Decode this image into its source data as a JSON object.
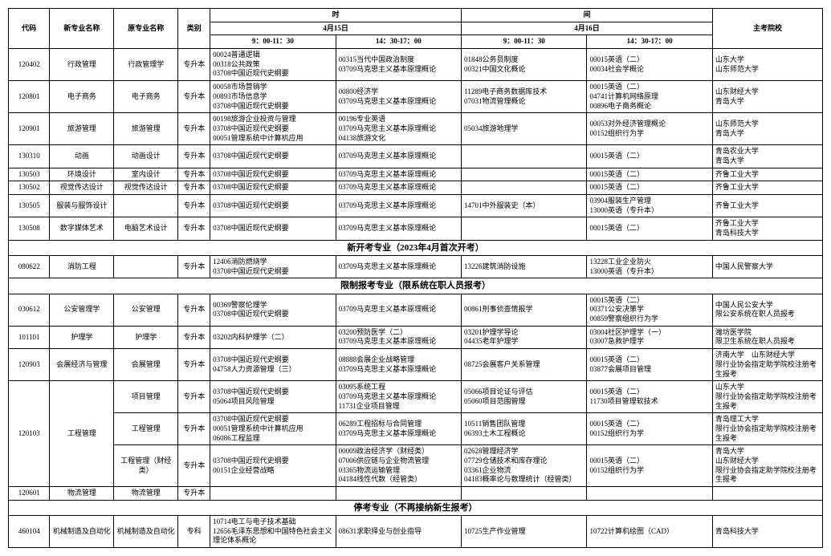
{
  "header": {
    "col_code": "代码",
    "col_new_major": "新专业名称",
    "col_old_major": "原专业名称",
    "col_type": "类别",
    "col_time": "时",
    "col_gap": "间",
    "col_date1": "4月15日",
    "col_date2": "4月16日",
    "slot1": "9：00-11：30",
    "slot2": "14：30-17：00",
    "slot3": "9：00-11：30",
    "slot4": "14：30-17：00",
    "col_school": "主考院校"
  },
  "rows": [
    {
      "code": "120402",
      "n": "行政管理",
      "o": "行政管理学",
      "t": "专升本",
      "s1": "00024普通逻辑\n00318公共政策\n03708中国近现代史纲要",
      "s2": "00315当代中国政治制度\n03709马克思主义基本原理概论",
      "s3": "01848公务员制度\n00321中国文化概论",
      "s4": "00015英语（二）\n00034社会学概论",
      "sch": "山东大学\n山东师范大学"
    },
    {
      "code": "120801",
      "n": "电子商务",
      "o": "电子商务",
      "t": "专升本",
      "s1": "00058市场营销学\n00893市场信息学\n03708中国近现代史纲要",
      "s2": "00800经济学\n03709马克思主义基本原理概论",
      "s3": "11289电子商务数据库技术\n07031物流管理概论",
      "s4": "00015英语（二）\n04741计算机网络原理\n00896电子商务概论",
      "sch": "山东财经大学\n青岛大学"
    },
    {
      "code": "120901",
      "n": "旅游管理",
      "o": "旅游管理",
      "t": "专升本",
      "s1": "00198旅游企业投资与管理\n03708中国近现代史纲要\n00051管理系统中计算机应用",
      "s2": "00196专业英语\n03709马克思主义基本原理概论\n04138旅游文化",
      "s3": "05034旅游地理学",
      "s4": "00053对外经济管理概论\n00152组织行为学",
      "sch": "山东师范大学\n青岛大学"
    },
    {
      "code": "130310",
      "n": "动画",
      "o": "动画设计",
      "t": "专升本",
      "s1": "03708中国近现代史纲要",
      "s2": "03709马克思主义基本原理概论",
      "s3": "",
      "s4": "00015英语（二）",
      "sch": "青岛农业大学\n青岛大学"
    },
    {
      "code": "130503",
      "n": "环境设计",
      "o": "室内设计",
      "t": "专升本",
      "s1": "03708中国近现代史纲要",
      "s2": "03709马克思主义基本原理概论",
      "s3": "",
      "s4": "00015英语（二）",
      "sch": "齐鲁工业大学"
    },
    {
      "code": "130502",
      "n": "视觉传达设计",
      "o": "视觉传达设计",
      "t": "专升本",
      "s1": "03708中国近现代史纲要",
      "s2": "03709马克思主义基本原理概论",
      "s3": "",
      "s4": "00015英语（二）",
      "sch": "齐鲁工业大学"
    },
    {
      "code": "130505",
      "n": "服装与服饰设计",
      "o": "",
      "t": "专升本",
      "s1": "03708中国近现代史纲要",
      "s2": "03709马克思主义基本原理概论",
      "s3": "14701中外服装史（本）",
      "s4": "03904服装生产管理\n13000英语（专升本）",
      "sch": "齐鲁工业大学"
    },
    {
      "code": "130508",
      "n": "数字媒体艺术",
      "o": "电脑艺术设计",
      "t": "专升本",
      "s1": "03708中国近现代史纲要",
      "s2": "03709马克思主义基本原理概论",
      "s3": "",
      "s4": "00015英语（二）",
      "sch": "齐鲁工业大学\n青岛科技大学"
    }
  ],
  "sec1": {
    "title": "新开考专业（2023年4月首次开考）"
  },
  "rows2": [
    {
      "code": "080622",
      "n": "消防工程",
      "o": "",
      "t": "专升本",
      "s1": "12406消防燃烧学\n03708中国近现代史纲要",
      "s2": "03709马克思主义基本原理概论",
      "s3": "13226建筑消防设施",
      "s4": "13228工业企业防火\n13000英语（专升本）",
      "sch": "中国人民警察大学"
    }
  ],
  "sec2": {
    "title": "限制报考专业（限系统在职人员报考）"
  },
  "rows3": [
    {
      "code": "030612",
      "n": "公安管理学",
      "o": "公安管理",
      "t": "专升本",
      "s1": "00369警察伦理学\n03708中国近现代史纲要",
      "s2": "03709马克思主义基本原理概论",
      "s3": "00861刑事侦查情报学",
      "s4": "00015英语（二）\n00371公安决策学\n00859警察组织行为学",
      "sch": "中国人民公安大学\n限公安系统在职人员报考"
    },
    {
      "code": "101101",
      "n": "护理学",
      "o": "护理学",
      "t": "专升本",
      "s1": "03202内科护理学（二）",
      "s2": "03200预防医学（二）\n03709马克思主义基本原理概论",
      "s3": "03201护理学导论\n04435老年护理学",
      "s4": "03004社区护理学（一）\n03007急救护理学",
      "sch": "潍坊医学院\n限卫生系统在职人员报考"
    },
    {
      "code": "120903",
      "n": "会展经济与管理",
      "o": "会展管理",
      "t": "专升本",
      "s1": "03708中国近现代史纲要\n04758人力资源管理（三）",
      "s2": "08888会展企业战略管理\n03709马克思主义基本原理概论",
      "s3": "08725会展客户关系管理",
      "s4": "00015英语（二）\n03877会展项目管理",
      "sch": "济南大学　山东财经大学\n限行业协会指定助学院校注册考生报考"
    },
    {
      "code": "120103",
      "n": "工程管理",
      "o": "项目管理",
      "t": "专升本",
      "rs": 3,
      "s1": "03708中国近现代史纲要\n05064项目风险管理",
      "s2": "03095系统工程\n03709马克思主义基本原理概论\n11731企业项目管理",
      "s3": "05066项目论证与评估\n05060项目范围管理",
      "s4": "00015英语（二）\n11730项目管理软技术",
      "sch": "山东大学\n限行业协会指定助学院校注册考生报考"
    },
    {
      "code": "",
      "n": "",
      "o": "工程管理",
      "t": "专升本",
      "s1": "03708中国近现代史纲要\n00051管理系统中计算机应用\n06086工程监理",
      "s2": "06289工程招标与合同管理\n03709马克思主义基本原理概论",
      "s3": "10511销售团队管理\n06393土木工程概论",
      "s4": "00015英语（二）\n00152组织行为学",
      "sch": "青岛理工大学\n限行业协会指定助学院校注册考生报考"
    },
    {
      "code": "",
      "n": "",
      "o": "工程管理（财经类）",
      "t": "专升本",
      "s1": "03708中国近现代史纲要\n00151企业经营战略",
      "s2": "00009政治经济学（财经类）\n07006供应链与企业物流管理\n03365物流运输管理\n04184线性代数（经管类）",
      "s3": "02628管理经济学\n07729仓储技术和库存理论\n03361企业物流\n04183概率论与数理统计（经管类）",
      "s4": "00015英语（二）\n00152组织行为学",
      "sch": "青岛大学\n山东财经大学\n限行业协会指定助学院校注册考生报考"
    },
    {
      "code": "120601",
      "n": "物流管理",
      "o": "物流管理",
      "t": "专升本",
      "s1": "",
      "s2": "",
      "s3": "",
      "s4": "",
      "sch": ""
    }
  ],
  "sec3": {
    "title": "停考专业（不再接纳新生报考）"
  },
  "rows4": [
    {
      "code": "460104",
      "n": "机械制造及自动化",
      "o": "机械制造及自动化",
      "t": "专科",
      "s1": "10714电工与电子技术基础\n12656毛泽东思想和中国特色社会主义理论体系概论",
      "s2": "08631求职择业与创业指导",
      "s3": "10725生产作业管理",
      "s4": "10722计算机绘图（CAD）",
      "sch": "青岛科技大学"
    }
  ]
}
